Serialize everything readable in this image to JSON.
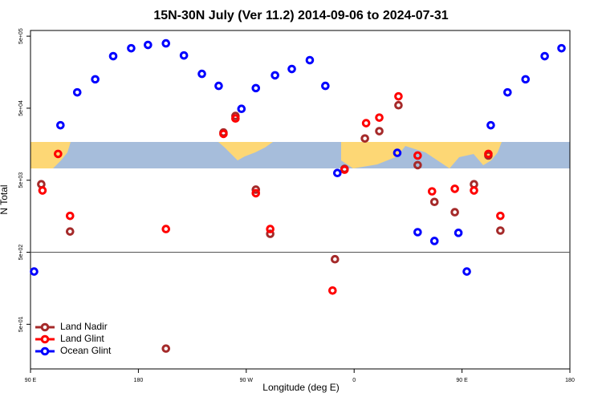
{
  "chart_data": {
    "type": "scatter",
    "title": "15N-30N July (Ver 11.2)   2014-09-06 to 2024-07-31",
    "xlabel": "Longitude (deg E)",
    "ylabel": "N Total",
    "xlim": [
      90,
      540
    ],
    "xticks": [
      {
        "value": 90,
        "label": "90 E"
      },
      180,
      {
        "value": 270,
        "label": "90 W"
      },
      {
        "value": 360,
        "label": "0"
      },
      {
        "value": 450,
        "label": "90 E"
      },
      {
        "value": 540,
        "label": "180"
      }
    ],
    "ylim": [
      12,
      600000
    ],
    "log_y": true,
    "yticks": [
      {
        "value": 500000,
        "label": "5e+05"
      },
      {
        "value": 50000,
        "label": "5e+04"
      },
      {
        "value": 5000,
        "label": "5e+03"
      },
      {
        "value": 500,
        "label": "5e+02"
      },
      {
        "value": 50,
        "label": "5e+01"
      }
    ],
    "hline": 500,
    "legend": "bottom-left",
    "series": [
      {
        "name": "Land Nadir",
        "color": "#a52a2a",
        "x": [
          99,
          123,
          203,
          251,
          261,
          278,
          290,
          344,
          352,
          369,
          381,
          397,
          413,
          427,
          444,
          460,
          472,
          482
        ],
        "values": [
          4400,
          970,
          23,
          23000,
          39000,
          3700,
          900,
          400,
          7200,
          19000,
          24000,
          55000,
          8100,
          2500,
          1800,
          4400,
          11000,
          1000
        ]
      },
      {
        "name": "Land Glint",
        "color": "#ff0000",
        "x": [
          113,
          100,
          123,
          203,
          251,
          261,
          278,
          290,
          342,
          352,
          370,
          381,
          397,
          413,
          425,
          444,
          460,
          472,
          482
        ],
        "values": [
          11600,
          3600,
          1600,
          1050,
          22000,
          36000,
          3300,
          1050,
          147,
          7000,
          31000,
          37000,
          73000,
          11000,
          3500,
          3800,
          3600,
          11600,
          1600
        ]
      },
      {
        "name": "Ocean Glint",
        "color": "#0000ff",
        "x": [
          93,
          115,
          129,
          144,
          159,
          174,
          188,
          203,
          218,
          233,
          247,
          266,
          278,
          294,
          308,
          323,
          336,
          346,
          396,
          413,
          427,
          447,
          454,
          474,
          488,
          503,
          519,
          533
        ],
        "values": [
          270,
          29000,
          83000,
          126000,
          264000,
          340000,
          378000,
          397000,
          270000,
          150000,
          102000,
          49000,
          95000,
          143000,
          175000,
          232000,
          102000,
          6300,
          12000,
          950,
          717,
          930,
          270,
          29000,
          83000,
          126000,
          264000,
          340000
        ]
      }
    ]
  }
}
